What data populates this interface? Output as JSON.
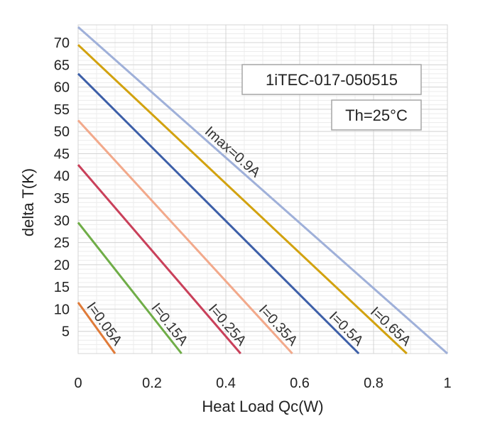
{
  "chart_data": {
    "type": "line",
    "title": "",
    "xlabel": "Heat Load Qc(W)",
    "ylabel": "delta T(K)",
    "xlim": [
      0,
      1
    ],
    "ylim": [
      0,
      74
    ],
    "xticks": [
      0,
      0.2,
      0.4,
      0.6,
      0.8,
      1
    ],
    "xtick_labels": [
      "0",
      "0.2",
      "0.4",
      "0.6",
      "0.8",
      "1"
    ],
    "yticks": [
      5,
      10,
      15,
      20,
      25,
      30,
      35,
      40,
      45,
      50,
      55,
      60,
      65,
      70
    ],
    "ytick_labels": [
      "5",
      "10",
      "15",
      "20",
      "25",
      "30",
      "35",
      "40",
      "45",
      "50",
      "55",
      "60",
      "65",
      "70"
    ],
    "grid": true,
    "annotations": [
      "1iTEC-017-050515",
      "Th=25°C"
    ],
    "series": [
      {
        "name": "I=0.05A",
        "color": "#e07b39",
        "x": [
          0,
          0.1
        ],
        "y": [
          11.5,
          0
        ]
      },
      {
        "name": "I=0.15A",
        "color": "#6fad47",
        "x": [
          0,
          0.28
        ],
        "y": [
          29.5,
          0
        ]
      },
      {
        "name": "I=0.25A",
        "color": "#c9405a",
        "x": [
          0,
          0.44
        ],
        "y": [
          42.5,
          0
        ]
      },
      {
        "name": "I=0.35A",
        "color": "#f2a98b",
        "x": [
          0,
          0.58
        ],
        "y": [
          52.5,
          0
        ]
      },
      {
        "name": "I=0.5A",
        "color": "#3d5fa8",
        "x": [
          0,
          0.76
        ],
        "y": [
          63,
          0
        ]
      },
      {
        "name": "I=0.65A",
        "color": "#d2a20f",
        "x": [
          0,
          0.89
        ],
        "y": [
          69.5,
          0
        ]
      },
      {
        "name": "Imax=0.9A",
        "color": "#9fb0d9",
        "x": [
          0,
          1.0
        ],
        "y": [
          73.5,
          0
        ]
      }
    ]
  }
}
